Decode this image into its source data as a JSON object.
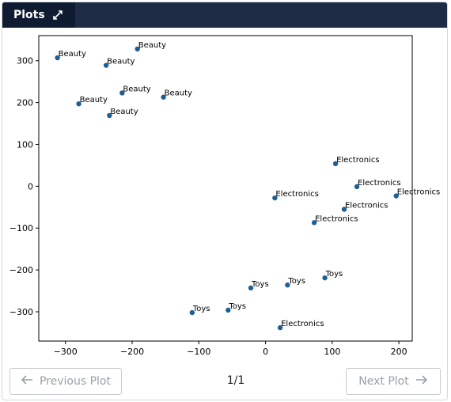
{
  "header": {
    "tab_label": "Plots",
    "expand_icon": "expand-diagonal-icon"
  },
  "chart_data": {
    "type": "scatter",
    "xlim": [
      -340,
      220
    ],
    "ylim": [
      -370,
      360
    ],
    "xticks": [
      -300,
      -200,
      -100,
      0,
      100,
      200
    ],
    "yticks": [
      300,
      200,
      100,
      0,
      -100,
      -200,
      -300
    ],
    "xtick_labels": [
      "−300",
      "−200",
      "−100",
      "0",
      "100",
      "200"
    ],
    "ytick_labels": [
      "300",
      "200",
      "100",
      "0",
      "−100",
      "−200",
      "−300"
    ],
    "grid": false,
    "point_color": "#1f5f94",
    "points": [
      {
        "x": -312,
        "y": 307,
        "label": "Beauty"
      },
      {
        "x": -239,
        "y": 289,
        "label": "Beauty"
      },
      {
        "x": -192,
        "y": 328,
        "label": "Beauty"
      },
      {
        "x": -215,
        "y": 223,
        "label": "Beauty"
      },
      {
        "x": -280,
        "y": 197,
        "label": "Beauty"
      },
      {
        "x": -153,
        "y": 213,
        "label": "Beauty"
      },
      {
        "x": -234,
        "y": 169,
        "label": "Beauty"
      },
      {
        "x": 105,
        "y": 54,
        "label": "Electronics"
      },
      {
        "x": 137,
        "y": -1,
        "label": "Electronics"
      },
      {
        "x": 196,
        "y": -23,
        "label": "Electronics"
      },
      {
        "x": 14,
        "y": -28,
        "label": "Electronics"
      },
      {
        "x": 118,
        "y": -55,
        "label": "Electronics"
      },
      {
        "x": 73,
        "y": -87,
        "label": "Electronics"
      },
      {
        "x": 89,
        "y": -219,
        "label": "Toys"
      },
      {
        "x": 33,
        "y": -236,
        "label": "Toys"
      },
      {
        "x": -22,
        "y": -243,
        "label": "Toys"
      },
      {
        "x": -110,
        "y": -302,
        "label": "Toys"
      },
      {
        "x": -56,
        "y": -296,
        "label": "Toys"
      },
      {
        "x": 22,
        "y": -338,
        "label": "Electronics"
      }
    ]
  },
  "footer": {
    "prev_label": "Previous Plot",
    "next_label": "Next Plot",
    "page_indicator": "1/1"
  }
}
